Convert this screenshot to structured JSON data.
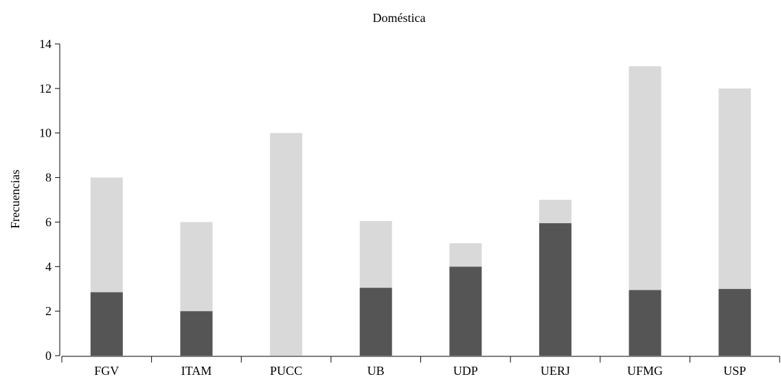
{
  "chart_data": {
    "type": "bar",
    "stacked": true,
    "title": "Doméstica",
    "xlabel": "",
    "ylabel": "Frecuencias",
    "categories": [
      "FGV",
      "ITAM",
      "PUCC",
      "UB",
      "UDP",
      "UERJ",
      "UFMG",
      "USP"
    ],
    "series": [
      {
        "values": [
          2.85,
          2,
          0,
          3.05,
          4,
          5.95,
          2.95,
          3
        ],
        "color": "#555555"
      },
      {
        "values": [
          5.15,
          4,
          10,
          3,
          1.05,
          1.05,
          10.05,
          9
        ],
        "color": "#d9d9d9"
      }
    ],
    "ylim": [
      0,
      14
    ],
    "yticks": [
      0,
      2,
      4,
      6,
      8,
      10,
      12,
      14
    ],
    "grid": false,
    "legend": "none"
  }
}
